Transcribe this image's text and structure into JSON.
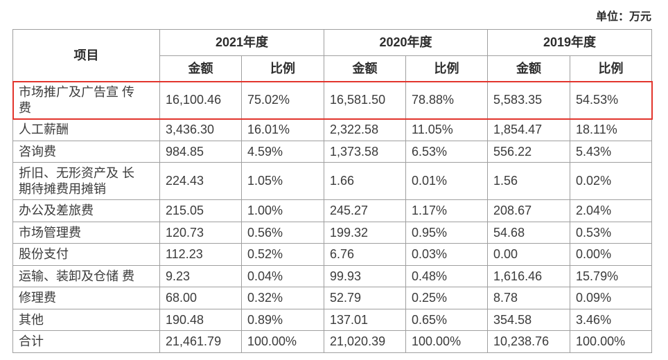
{
  "unit_label": "单位：万元",
  "table": {
    "item_header": "项目",
    "year_groups": [
      {
        "label": "2021年度",
        "cols": [
          "金额",
          "比例"
        ]
      },
      {
        "label": "2020年度",
        "cols": [
          "金额",
          "比例"
        ]
      },
      {
        "label": "2019年度",
        "cols": [
          "金额",
          "比例"
        ]
      }
    ],
    "highlight_color": "#e2342c",
    "border_color": "#9f9f9f",
    "rows": [
      {
        "item": "市场推广及广告宣 传\n费",
        "highlighted": true,
        "values": [
          "16,100.46",
          "75.02%",
          "16,581.50",
          "78.88%",
          "5,583.35",
          "54.53%"
        ]
      },
      {
        "item": "人工薪酬",
        "highlighted": false,
        "values": [
          "3,436.30",
          "16.01%",
          "2,322.58",
          "11.05%",
          "1,854.47",
          "18.11%"
        ]
      },
      {
        "item": "咨询费",
        "highlighted": false,
        "values": [
          "984.85",
          "4.59%",
          "1,373.58",
          "6.53%",
          "556.22",
          "5.43%"
        ]
      },
      {
        "item": "折旧、无形资产及 长\n期待摊费用摊销",
        "highlighted": false,
        "values": [
          "224.43",
          "1.05%",
          "1.66",
          "0.01%",
          "1.56",
          "0.02%"
        ]
      },
      {
        "item": "办公及差旅费",
        "highlighted": false,
        "values": [
          "215.05",
          "1.00%",
          "245.27",
          "1.17%",
          "208.67",
          "2.04%"
        ]
      },
      {
        "item": "市场管理费",
        "highlighted": false,
        "values": [
          "120.73",
          "0.56%",
          "199.32",
          "0.95%",
          "54.68",
          "0.53%"
        ]
      },
      {
        "item": "股份支付",
        "highlighted": false,
        "values": [
          "112.23",
          "0.52%",
          "6.76",
          "0.03%",
          "0.00",
          "0.00%"
        ]
      },
      {
        "item": "运输、装卸及仓储 费",
        "highlighted": false,
        "values": [
          "9.23",
          "0.04%",
          "99.93",
          "0.48%",
          "1,616.46",
          "15.79%"
        ]
      },
      {
        "item": "修理费",
        "highlighted": false,
        "values": [
          "68.00",
          "0.32%",
          "52.79",
          "0.25%",
          "8.78",
          "0.09%"
        ]
      },
      {
        "item": "其他",
        "highlighted": false,
        "values": [
          "190.48",
          "0.89%",
          "137.01",
          "0.65%",
          "354.58",
          "3.46%"
        ]
      },
      {
        "item": "合计",
        "highlighted": false,
        "values": [
          "21,461.79",
          "100.00%",
          "21,020.39",
          "100.00%",
          "10,238.76",
          "100.00%"
        ]
      }
    ]
  }
}
